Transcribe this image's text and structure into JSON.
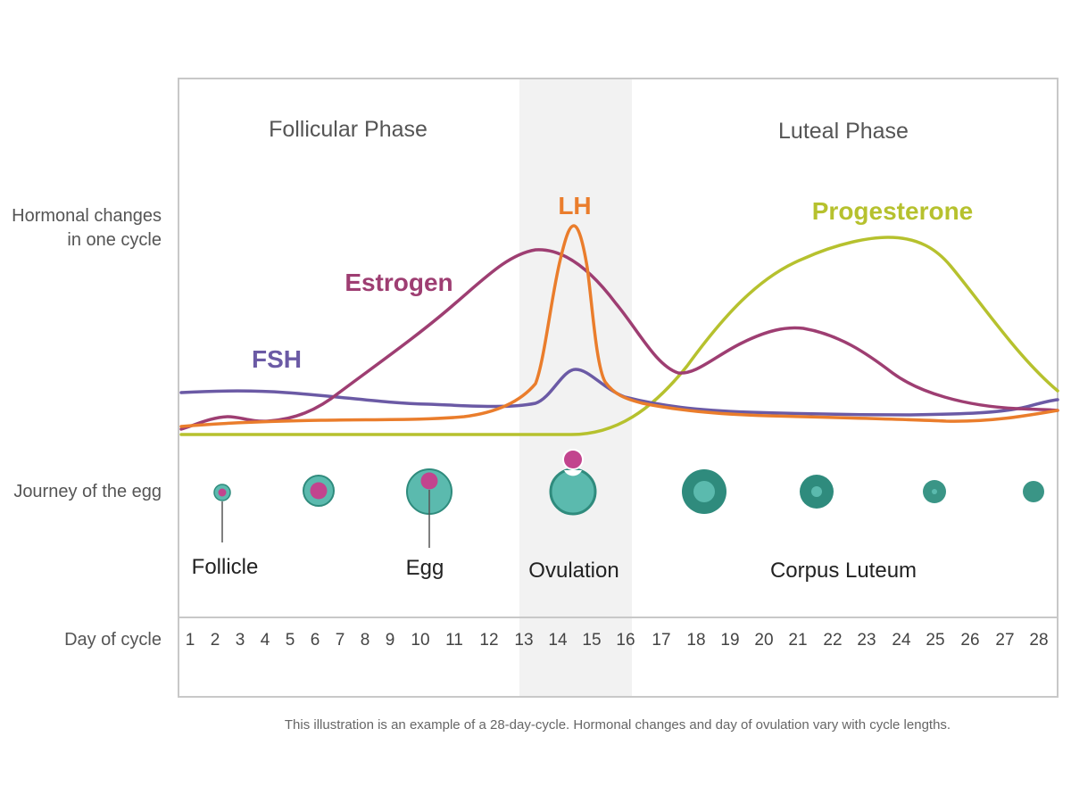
{
  "colors": {
    "frame": "#c8c8c8",
    "ovulation_band": "#f2f2f2",
    "fsh": "#6b5aa5",
    "estrogen": "#9e3e72",
    "lh": "#ea7d2c",
    "progesterone": "#b6c12e",
    "follicle_body": "#5bbaae",
    "follicle_dark": "#2f8b7d",
    "egg": "#c2448e"
  },
  "phases": {
    "follicular": "Follicular Phase",
    "luteal": "Luteal Phase"
  },
  "row_labels": {
    "hormonal": [
      "Hormonal changes",
      "in one cycle"
    ],
    "journey": "Journey of the egg",
    "day": "Day of cycle"
  },
  "curves": {
    "fsh": "FSH",
    "estrogen": "Estrogen",
    "lh": "LH",
    "progesterone": "Progesterone"
  },
  "journey_labels": {
    "follicle": "Follicle",
    "egg": "Egg",
    "ovulation": "Ovulation",
    "corpus_luteum": "Corpus Luteum"
  },
  "days": [
    "1",
    "2",
    "3",
    "4",
    "5",
    "6",
    "7",
    "8",
    "9",
    "10",
    "11",
    "12",
    "13",
    "14",
    "15",
    "16",
    "17",
    "18",
    "19",
    "20",
    "21",
    "22",
    "23",
    "24",
    "25",
    "26",
    "27",
    "28"
  ],
  "footnote": "This illustration is an example of a 28-day-cycle. Hormonal changes and day of ovulation vary with cycle lengths."
}
